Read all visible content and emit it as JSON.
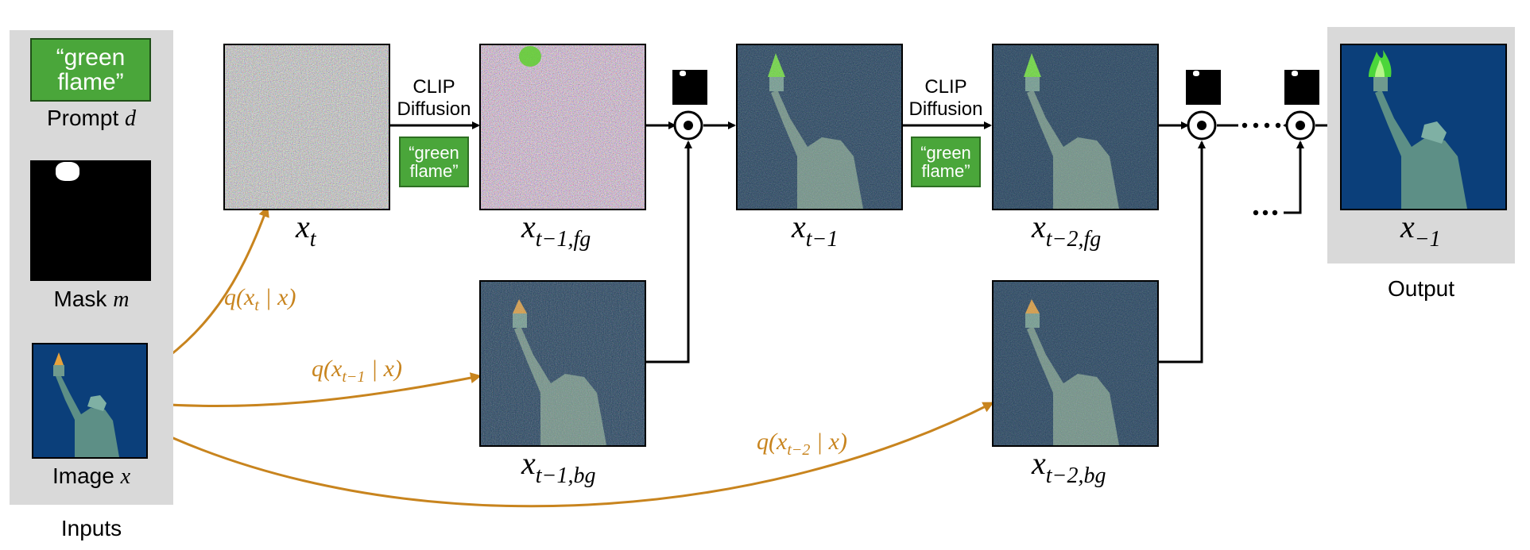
{
  "inputs": {
    "prompt_text": "“green flame”",
    "prompt_label": "Prompt",
    "prompt_var": "d",
    "mask_label": "Mask",
    "mask_var": "m",
    "image_label": "Image",
    "image_var": "x",
    "panel_label": "Inputs"
  },
  "steps": {
    "clip_label_1": "CLIP",
    "clip_label_2": "Diffusion",
    "prompt_chip": "“green flame”",
    "xt": "t",
    "xt1fg": "t−1,fg",
    "xt1": "t−1",
    "xt2fg": "t−2,fg",
    "xt1bg": "t−1,bg",
    "xt2bg": "t−2,bg",
    "out": "−1",
    "dots": "···",
    "output_label": "Output"
  },
  "noise_links": {
    "q1_arg": "t",
    "q2_arg": "t−1",
    "q3_arg": "t−2"
  },
  "colors": {
    "panel": "#d9d9d9",
    "arrow_orange": "#c8841e",
    "green_box": "#4aa63a",
    "sky": "#0b3f7a"
  }
}
